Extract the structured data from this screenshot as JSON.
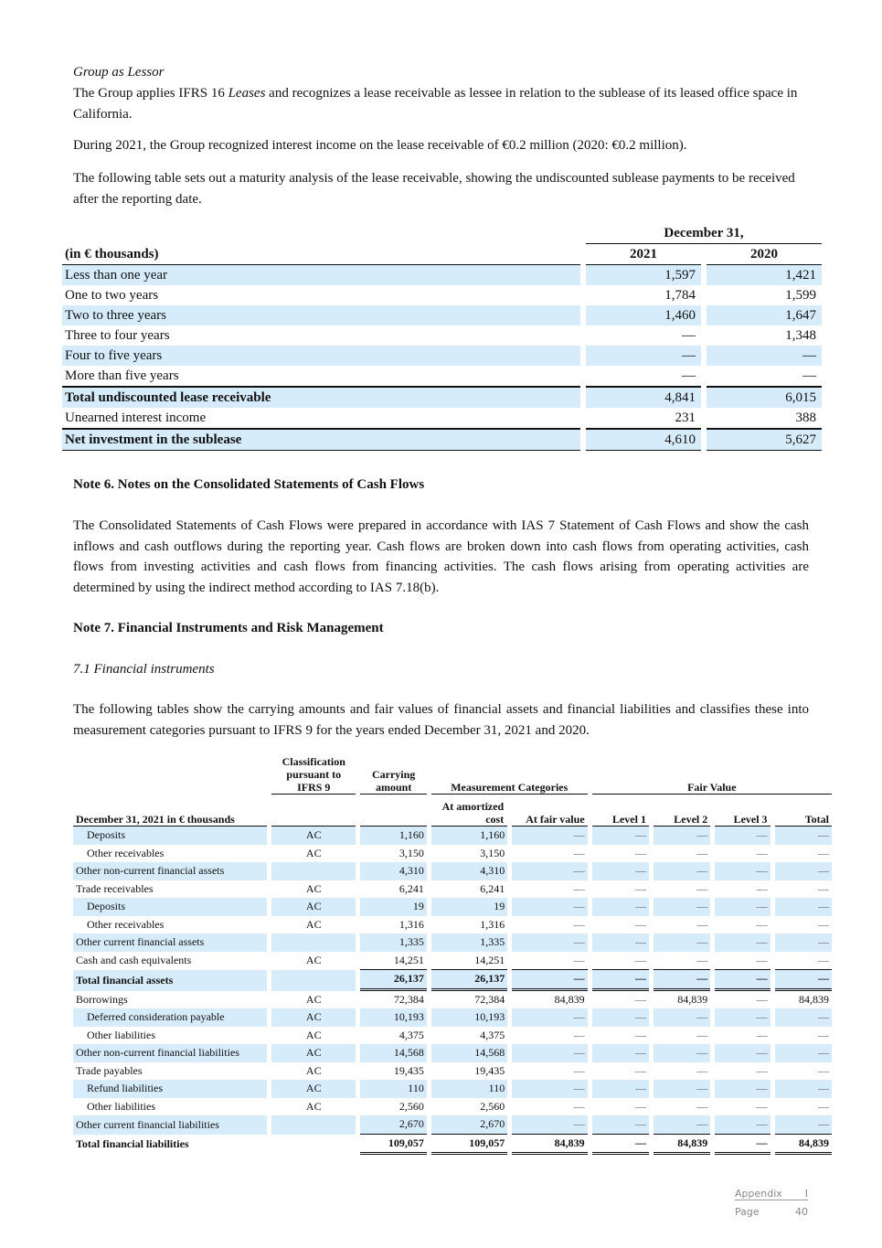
{
  "lessor": {
    "heading": "Group as Lessor",
    "p1_a": "The Group applies IFRS 16 ",
    "p1_em": "Leases",
    "p1_b": " and recognizes a lease receivable as lessee in relation to the sublease of its leased office space in California.",
    "p2": "During 2021, the Group recognized interest income on the lease receivable of €0.2 million (2020: €0.2 million).",
    "p3": "The following table sets out a maturity analysis of the lease receivable, showing the undiscounted sublease payments to be received after the reporting date."
  },
  "maturity_table": {
    "group_header": "December 31,",
    "unit_header": "(in € thousands)",
    "col_2021": "2021",
    "col_2020": "2020",
    "rows": [
      {
        "label": "Less than one year",
        "v2021": "1,597",
        "v2020": "1,421"
      },
      {
        "label": "One to two years",
        "v2021": "1,784",
        "v2020": "1,599"
      },
      {
        "label": "Two to three years",
        "v2021": "1,460",
        "v2020": "1,647"
      },
      {
        "label": "Three to four years",
        "v2021": "—",
        "v2020": "1,348"
      },
      {
        "label": "Four to five years",
        "v2021": "—",
        "v2020": "—"
      },
      {
        "label": "More than five years",
        "v2021": "—",
        "v2020": "—"
      },
      {
        "label": "Total undiscounted lease receivable",
        "v2021": "4,841",
        "v2020": "6,015",
        "bold": true
      },
      {
        "label": "Unearned interest income",
        "v2021": "231",
        "v2020": "388"
      },
      {
        "label": "Net investment in the sublease",
        "v2021": "4,610",
        "v2020": "5,627",
        "bold": true
      }
    ]
  },
  "note6": {
    "title": "Note 6. Notes on the Consolidated Statements of Cash Flows",
    "body": "The Consolidated Statements of Cash Flows were prepared in accordance with IAS 7 Statement of Cash Flows and show the cash inflows and cash outflows during the reporting year. Cash flows are broken down into cash flows from operating activities, cash flows from investing activities and cash flows from financing activities. The cash flows arising from operating activities are determined by using the indirect method according to IAS 7.18(b)."
  },
  "note7": {
    "title": "Note 7. Financial Instruments and Risk Management",
    "sub": "7.1  Financial instruments",
    "body": "The following tables show the carrying amounts and fair values of financial assets and financial liabilities and classifies these into measurement categories pursuant to IFRS 9 for the years ended December 31, 2021 and 2020."
  },
  "fi_table": {
    "h_class": "Classification pursuant to IFRS 9",
    "h_carrying": "Carrying amount",
    "h_meas": "Measurement Categories",
    "h_fair": "Fair Value",
    "h_label": "December 31, 2021 in € thousands",
    "h_amort": "At amortized cost",
    "h_atfv": "At fair value",
    "h_l1": "Level 1",
    "h_l2": "Level 2",
    "h_l3": "Level 3",
    "h_total": "Total",
    "rows": [
      {
        "label": "Deposits",
        "indent": true,
        "cls": "AC",
        "vals": [
          "1,160",
          "1,160",
          "—",
          "—",
          "—",
          "—",
          "—"
        ]
      },
      {
        "label": "Other receivables",
        "indent": true,
        "cls": "AC",
        "vals": [
          "3,150",
          "3,150",
          "—",
          "—",
          "—",
          "—",
          "—"
        ]
      },
      {
        "label": "Other non-current financial assets",
        "cls": "",
        "vals": [
          "4,310",
          "4,310",
          "—",
          "—",
          "—",
          "—",
          "—"
        ]
      },
      {
        "label": "Trade receivables",
        "cls": "AC",
        "vals": [
          "6,241",
          "6,241",
          "—",
          "—",
          "—",
          "—",
          "—"
        ]
      },
      {
        "label": "Deposits",
        "indent": true,
        "cls": "AC",
        "vals": [
          "19",
          "19",
          "—",
          "—",
          "—",
          "—",
          "—"
        ]
      },
      {
        "label": "Other receivables",
        "indent": true,
        "cls": "AC",
        "vals": [
          "1,316",
          "1,316",
          "—",
          "—",
          "—",
          "—",
          "—"
        ]
      },
      {
        "label": "Other current financial assets",
        "cls": "",
        "vals": [
          "1,335",
          "1,335",
          "—",
          "—",
          "—",
          "—",
          "—"
        ]
      },
      {
        "label": "Cash and cash equivalents",
        "cls": "AC",
        "vals": [
          "14,251",
          "14,251",
          "—",
          "—",
          "—",
          "—",
          "—"
        ],
        "ul": true
      },
      {
        "label": "Total financial assets",
        "cls": "",
        "vals": [
          "26,137",
          "26,137",
          "—",
          "—",
          "—",
          "—",
          "—"
        ],
        "bold": true,
        "total": true
      },
      {
        "label": "Borrowings",
        "cls": "AC",
        "vals": [
          "72,384",
          "72,384",
          "84,839",
          "—",
          "84,839",
          "—",
          "84,839"
        ]
      },
      {
        "label": "Deferred consideration payable",
        "indent": true,
        "cls": "AC",
        "vals": [
          "10,193",
          "10,193",
          "—",
          "—",
          "—",
          "—",
          "—"
        ]
      },
      {
        "label": "Other liabilities",
        "indent": true,
        "cls": "AC",
        "vals": [
          "4,375",
          "4,375",
          "—",
          "—",
          "—",
          "—",
          "—"
        ]
      },
      {
        "label": "Other non-current financial liabilities",
        "cls": "AC",
        "vals": [
          "14,568",
          "14,568",
          "—",
          "—",
          "—",
          "—",
          "—"
        ]
      },
      {
        "label": "Trade payables",
        "cls": "AC",
        "vals": [
          "19,435",
          "19,435",
          "—",
          "—",
          "—",
          "—",
          "—"
        ]
      },
      {
        "label": "Refund liabilities",
        "indent": true,
        "cls": "AC",
        "vals": [
          "110",
          "110",
          "—",
          "—",
          "—",
          "—",
          "—"
        ]
      },
      {
        "label": "Other liabilities",
        "indent": true,
        "cls": "AC",
        "vals": [
          "2,560",
          "2,560",
          "—",
          "—",
          "—",
          "—",
          "—"
        ]
      },
      {
        "label": "Other current financial liabilities",
        "cls": "",
        "vals": [
          "2,670",
          "2,670",
          "—",
          "—",
          "—",
          "—",
          "—"
        ],
        "ul": true
      },
      {
        "label": "Total financial liabilities",
        "cls": "",
        "vals": [
          "109,057",
          "109,057",
          "84,839",
          "—",
          "84,839",
          "—",
          "84,839"
        ],
        "bold": true,
        "total": true
      }
    ]
  },
  "footer": {
    "section": "Appendix",
    "section_no": "I",
    "page_label": "Page",
    "page_no": "40"
  }
}
